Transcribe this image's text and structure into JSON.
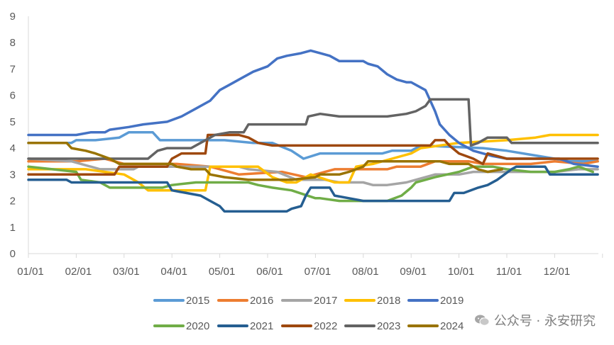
{
  "watermark": "公众号 · 永安研究",
  "chart_data": {
    "type": "line",
    "xlabel": "",
    "ylabel": "",
    "ylim": [
      0,
      9
    ],
    "yticks": [
      "0",
      "1",
      "2",
      "3",
      "4",
      "5",
      "6",
      "7",
      "8",
      "9"
    ],
    "xticks": [
      "01/01",
      "02/01",
      "03/01",
      "04/01",
      "05/01",
      "06/01",
      "07/01",
      "08/01",
      "09/01",
      "10/01",
      "11/01",
      "12/01"
    ],
    "grid": "none",
    "legend_position": "bottom",
    "series": [
      {
        "name": "2015",
        "color": "#5B9BD5",
        "points": [
          [
            0,
            4.2
          ],
          [
            0.9,
            4.2
          ],
          [
            1.0,
            4.3
          ],
          [
            1.4,
            4.3
          ],
          [
            1.9,
            4.4
          ],
          [
            2.1,
            4.6
          ],
          [
            2.6,
            4.6
          ],
          [
            2.75,
            4.3
          ],
          [
            4.1,
            4.3
          ],
          [
            4.7,
            4.2
          ],
          [
            5.1,
            4.2
          ],
          [
            5.5,
            3.9
          ],
          [
            5.75,
            3.6
          ],
          [
            6.1,
            3.8
          ],
          [
            7.4,
            3.8
          ],
          [
            7.6,
            3.9
          ],
          [
            8.0,
            3.9
          ],
          [
            8.2,
            4.1
          ],
          [
            9.5,
            4.0
          ],
          [
            10.0,
            3.9
          ],
          [
            11.0,
            3.6
          ],
          [
            11.3,
            3.5
          ],
          [
            11.9,
            3.5
          ]
        ]
      },
      {
        "name": "2016",
        "color": "#ED7D31",
        "points": [
          [
            0,
            3.5
          ],
          [
            1.0,
            3.5
          ],
          [
            1.6,
            3.6
          ],
          [
            2.0,
            3.4
          ],
          [
            3.1,
            3.4
          ],
          [
            3.8,
            3.3
          ],
          [
            4.2,
            3.1
          ],
          [
            4.4,
            3.0
          ],
          [
            5.3,
            3.1
          ],
          [
            5.8,
            2.9
          ],
          [
            6.2,
            3.1
          ],
          [
            6.4,
            3.2
          ],
          [
            7.5,
            3.2
          ],
          [
            7.7,
            3.3
          ],
          [
            8.2,
            3.3
          ],
          [
            8.5,
            3.5
          ],
          [
            9.2,
            3.5
          ],
          [
            9.5,
            3.4
          ],
          [
            10.5,
            3.4
          ],
          [
            11.0,
            3.5
          ],
          [
            11.6,
            3.4
          ],
          [
            11.9,
            3.5
          ]
        ]
      },
      {
        "name": "2017",
        "color": "#A5A5A5",
        "points": [
          [
            0,
            3.6
          ],
          [
            0.9,
            3.5
          ],
          [
            1.5,
            3.2
          ],
          [
            2.2,
            3.2
          ],
          [
            2.3,
            3.3
          ],
          [
            4.0,
            3.3
          ],
          [
            4.4,
            3.3
          ],
          [
            4.6,
            3.2
          ],
          [
            5.2,
            3.1
          ],
          [
            5.6,
            2.8
          ],
          [
            6.2,
            2.8
          ],
          [
            6.5,
            2.7
          ],
          [
            7.0,
            2.7
          ],
          [
            7.2,
            2.6
          ],
          [
            7.5,
            2.6
          ],
          [
            7.9,
            2.7
          ],
          [
            8.3,
            2.9
          ],
          [
            8.5,
            3.0
          ],
          [
            9.0,
            3.0
          ],
          [
            9.3,
            3.1
          ],
          [
            10.5,
            3.1
          ],
          [
            11.0,
            3.1
          ],
          [
            11.5,
            3.2
          ],
          [
            11.9,
            3.2
          ]
        ]
      },
      {
        "name": "2018",
        "color": "#FFC000",
        "points": [
          [
            0,
            3.2
          ],
          [
            0.8,
            3.2
          ],
          [
            1.2,
            3.2
          ],
          [
            1.6,
            3.1
          ],
          [
            2.0,
            3.0
          ],
          [
            2.3,
            2.7
          ],
          [
            2.5,
            2.4
          ],
          [
            2.9,
            2.4
          ],
          [
            3.7,
            2.4
          ],
          [
            3.8,
            3.3
          ],
          [
            4.8,
            3.3
          ],
          [
            5.1,
            2.9
          ],
          [
            5.4,
            2.7
          ],
          [
            5.6,
            2.7
          ],
          [
            5.9,
            3.0
          ],
          [
            6.4,
            2.7
          ],
          [
            6.7,
            2.7
          ],
          [
            6.85,
            3.3
          ],
          [
            7.2,
            3.4
          ],
          [
            7.6,
            3.6
          ],
          [
            8.0,
            3.8
          ],
          [
            8.2,
            4.0
          ],
          [
            9.0,
            4.2
          ],
          [
            10.0,
            4.3
          ],
          [
            10.6,
            4.4
          ],
          [
            10.9,
            4.5
          ],
          [
            11.9,
            4.5
          ]
        ]
      },
      {
        "name": "2019",
        "color": "#4472C4",
        "points": [
          [
            0,
            4.5
          ],
          [
            1.0,
            4.5
          ],
          [
            1.3,
            4.6
          ],
          [
            1.6,
            4.6
          ],
          [
            1.7,
            4.7
          ],
          [
            2.1,
            4.8
          ],
          [
            2.4,
            4.9
          ],
          [
            2.9,
            5.0
          ],
          [
            3.2,
            5.2
          ],
          [
            3.5,
            5.5
          ],
          [
            3.8,
            5.8
          ],
          [
            4.0,
            6.2
          ],
          [
            4.2,
            6.4
          ],
          [
            4.4,
            6.6
          ],
          [
            4.7,
            6.9
          ],
          [
            5.0,
            7.1
          ],
          [
            5.2,
            7.4
          ],
          [
            5.4,
            7.5
          ],
          [
            5.7,
            7.6
          ],
          [
            5.9,
            7.7
          ],
          [
            6.1,
            7.6
          ],
          [
            6.3,
            7.5
          ],
          [
            6.5,
            7.3
          ],
          [
            6.6,
            7.3
          ],
          [
            7.0,
            7.3
          ],
          [
            7.1,
            7.2
          ],
          [
            7.3,
            7.1
          ],
          [
            7.5,
            6.8
          ],
          [
            7.7,
            6.6
          ],
          [
            7.9,
            6.5
          ],
          [
            8.0,
            6.5
          ],
          [
            8.3,
            6.2
          ],
          [
            8.4,
            5.8
          ],
          [
            8.5,
            5.4
          ],
          [
            8.6,
            4.9
          ],
          [
            8.8,
            4.5
          ],
          [
            9.0,
            4.2
          ],
          [
            9.3,
            3.9
          ],
          [
            9.7,
            3.7
          ],
          [
            10.0,
            3.6
          ],
          [
            10.3,
            3.6
          ],
          [
            11.1,
            3.6
          ],
          [
            11.4,
            3.4
          ],
          [
            11.9,
            3.3
          ]
        ]
      },
      {
        "name": "2020",
        "color": "#70AD47",
        "points": [
          [
            0,
            3.3
          ],
          [
            0.5,
            3.2
          ],
          [
            1.0,
            3.1
          ],
          [
            1.1,
            2.8
          ],
          [
            1.5,
            2.7
          ],
          [
            1.7,
            2.5
          ],
          [
            2.3,
            2.5
          ],
          [
            2.8,
            2.5
          ],
          [
            3.0,
            2.6
          ],
          [
            3.5,
            2.7
          ],
          [
            4.6,
            2.7
          ],
          [
            4.8,
            2.6
          ],
          [
            5.1,
            2.5
          ],
          [
            5.5,
            2.4
          ],
          [
            6.0,
            2.1
          ],
          [
            6.1,
            2.1
          ],
          [
            6.5,
            2.0
          ],
          [
            7.0,
            2.0
          ],
          [
            7.5,
            2.0
          ],
          [
            7.8,
            2.2
          ],
          [
            8.0,
            2.5
          ],
          [
            8.1,
            2.7
          ],
          [
            8.5,
            2.9
          ],
          [
            9.0,
            3.1
          ],
          [
            9.3,
            3.3
          ],
          [
            9.7,
            3.3
          ],
          [
            10.0,
            3.2
          ],
          [
            10.5,
            3.1
          ],
          [
            11.0,
            3.1
          ],
          [
            11.3,
            3.2
          ],
          [
            11.5,
            3.3
          ],
          [
            11.8,
            3.1
          ]
        ]
      },
      {
        "name": "2021",
        "color": "#255E91",
        "points": [
          [
            0,
            2.8
          ],
          [
            0.8,
            2.8
          ],
          [
            0.9,
            2.7
          ],
          [
            2.9,
            2.7
          ],
          [
            3.0,
            2.4
          ],
          [
            3.3,
            2.3
          ],
          [
            3.6,
            2.2
          ],
          [
            3.8,
            2.0
          ],
          [
            4.0,
            1.8
          ],
          [
            4.1,
            1.6
          ],
          [
            5.0,
            1.6
          ],
          [
            5.4,
            1.6
          ],
          [
            5.5,
            1.7
          ],
          [
            5.7,
            1.8
          ],
          [
            5.8,
            2.2
          ],
          [
            5.9,
            2.5
          ],
          [
            6.3,
            2.5
          ],
          [
            6.4,
            2.2
          ],
          [
            6.7,
            2.1
          ],
          [
            7.0,
            2.0
          ],
          [
            8.0,
            2.0
          ],
          [
            8.8,
            2.0
          ],
          [
            8.9,
            2.3
          ],
          [
            9.1,
            2.3
          ],
          [
            9.4,
            2.5
          ],
          [
            9.6,
            2.6
          ],
          [
            9.8,
            2.8
          ],
          [
            10.1,
            3.2
          ],
          [
            10.2,
            3.3
          ],
          [
            10.8,
            3.3
          ],
          [
            10.9,
            3.0
          ],
          [
            11.9,
            3.0
          ]
        ]
      },
      {
        "name": "2022",
        "color": "#9E480E",
        "points": [
          [
            0,
            3.0
          ],
          [
            0.5,
            3.0
          ],
          [
            1.1,
            3.0
          ],
          [
            1.8,
            3.0
          ],
          [
            1.9,
            3.3
          ],
          [
            2.9,
            3.3
          ],
          [
            3.0,
            3.6
          ],
          [
            3.2,
            3.8
          ],
          [
            3.7,
            3.8
          ],
          [
            3.75,
            4.5
          ],
          [
            4.4,
            4.5
          ],
          [
            4.6,
            4.4
          ],
          [
            4.8,
            4.2
          ],
          [
            5.1,
            4.1
          ],
          [
            6.0,
            4.1
          ],
          [
            7.0,
            4.1
          ],
          [
            8.0,
            4.1
          ],
          [
            8.4,
            4.1
          ],
          [
            8.5,
            4.3
          ],
          [
            8.7,
            4.3
          ],
          [
            8.8,
            4.1
          ],
          [
            9.0,
            3.8
          ],
          [
            9.3,
            3.6
          ],
          [
            9.5,
            3.4
          ],
          [
            9.6,
            3.8
          ],
          [
            9.8,
            3.7
          ],
          [
            10.0,
            3.6
          ],
          [
            11.0,
            3.6
          ],
          [
            11.9,
            3.6
          ]
        ]
      },
      {
        "name": "2023",
        "color": "#636363",
        "points": [
          [
            0,
            3.6
          ],
          [
            1.1,
            3.6
          ],
          [
            2.0,
            3.6
          ],
          [
            2.5,
            3.6
          ],
          [
            2.7,
            3.9
          ],
          [
            2.9,
            4.0
          ],
          [
            3.4,
            4.0
          ],
          [
            3.6,
            4.2
          ],
          [
            3.9,
            4.5
          ],
          [
            4.2,
            4.6
          ],
          [
            4.5,
            4.6
          ],
          [
            4.6,
            4.9
          ],
          [
            5.5,
            4.9
          ],
          [
            5.8,
            4.9
          ],
          [
            5.85,
            5.2
          ],
          [
            6.1,
            5.3
          ],
          [
            6.5,
            5.2
          ],
          [
            7.5,
            5.2
          ],
          [
            7.9,
            5.3
          ],
          [
            8.1,
            5.4
          ],
          [
            8.3,
            5.6
          ],
          [
            8.4,
            5.85
          ],
          [
            9.2,
            5.85
          ],
          [
            9.25,
            4.1
          ],
          [
            9.4,
            4.2
          ],
          [
            9.6,
            4.4
          ],
          [
            10.0,
            4.4
          ],
          [
            10.1,
            4.2
          ],
          [
            11.0,
            4.2
          ],
          [
            11.9,
            4.2
          ]
        ]
      },
      {
        "name": "2024",
        "color": "#997300",
        "points": [
          [
            0,
            4.2
          ],
          [
            0.8,
            4.2
          ],
          [
            0.9,
            4.0
          ],
          [
            1.2,
            3.9
          ],
          [
            1.4,
            3.8
          ],
          [
            1.7,
            3.6
          ],
          [
            1.9,
            3.4
          ],
          [
            2.5,
            3.4
          ],
          [
            3.0,
            3.4
          ],
          [
            3.1,
            3.3
          ],
          [
            3.4,
            3.2
          ],
          [
            3.7,
            3.2
          ],
          [
            3.8,
            3.0
          ],
          [
            4.1,
            2.9
          ],
          [
            4.6,
            2.8
          ],
          [
            5.5,
            2.8
          ],
          [
            6.0,
            2.9
          ],
          [
            6.1,
            3.0
          ],
          [
            6.5,
            3.0
          ],
          [
            6.7,
            3.1
          ],
          [
            7.0,
            3.3
          ],
          [
            7.1,
            3.5
          ],
          [
            8.0,
            3.5
          ],
          [
            8.6,
            3.5
          ],
          [
            8.8,
            3.4
          ],
          [
            9.0,
            3.4
          ],
          [
            9.2,
            3.4
          ],
          [
            9.4,
            3.2
          ],
          [
            9.6,
            3.1
          ],
          [
            9.9,
            3.2
          ]
        ]
      }
    ]
  }
}
